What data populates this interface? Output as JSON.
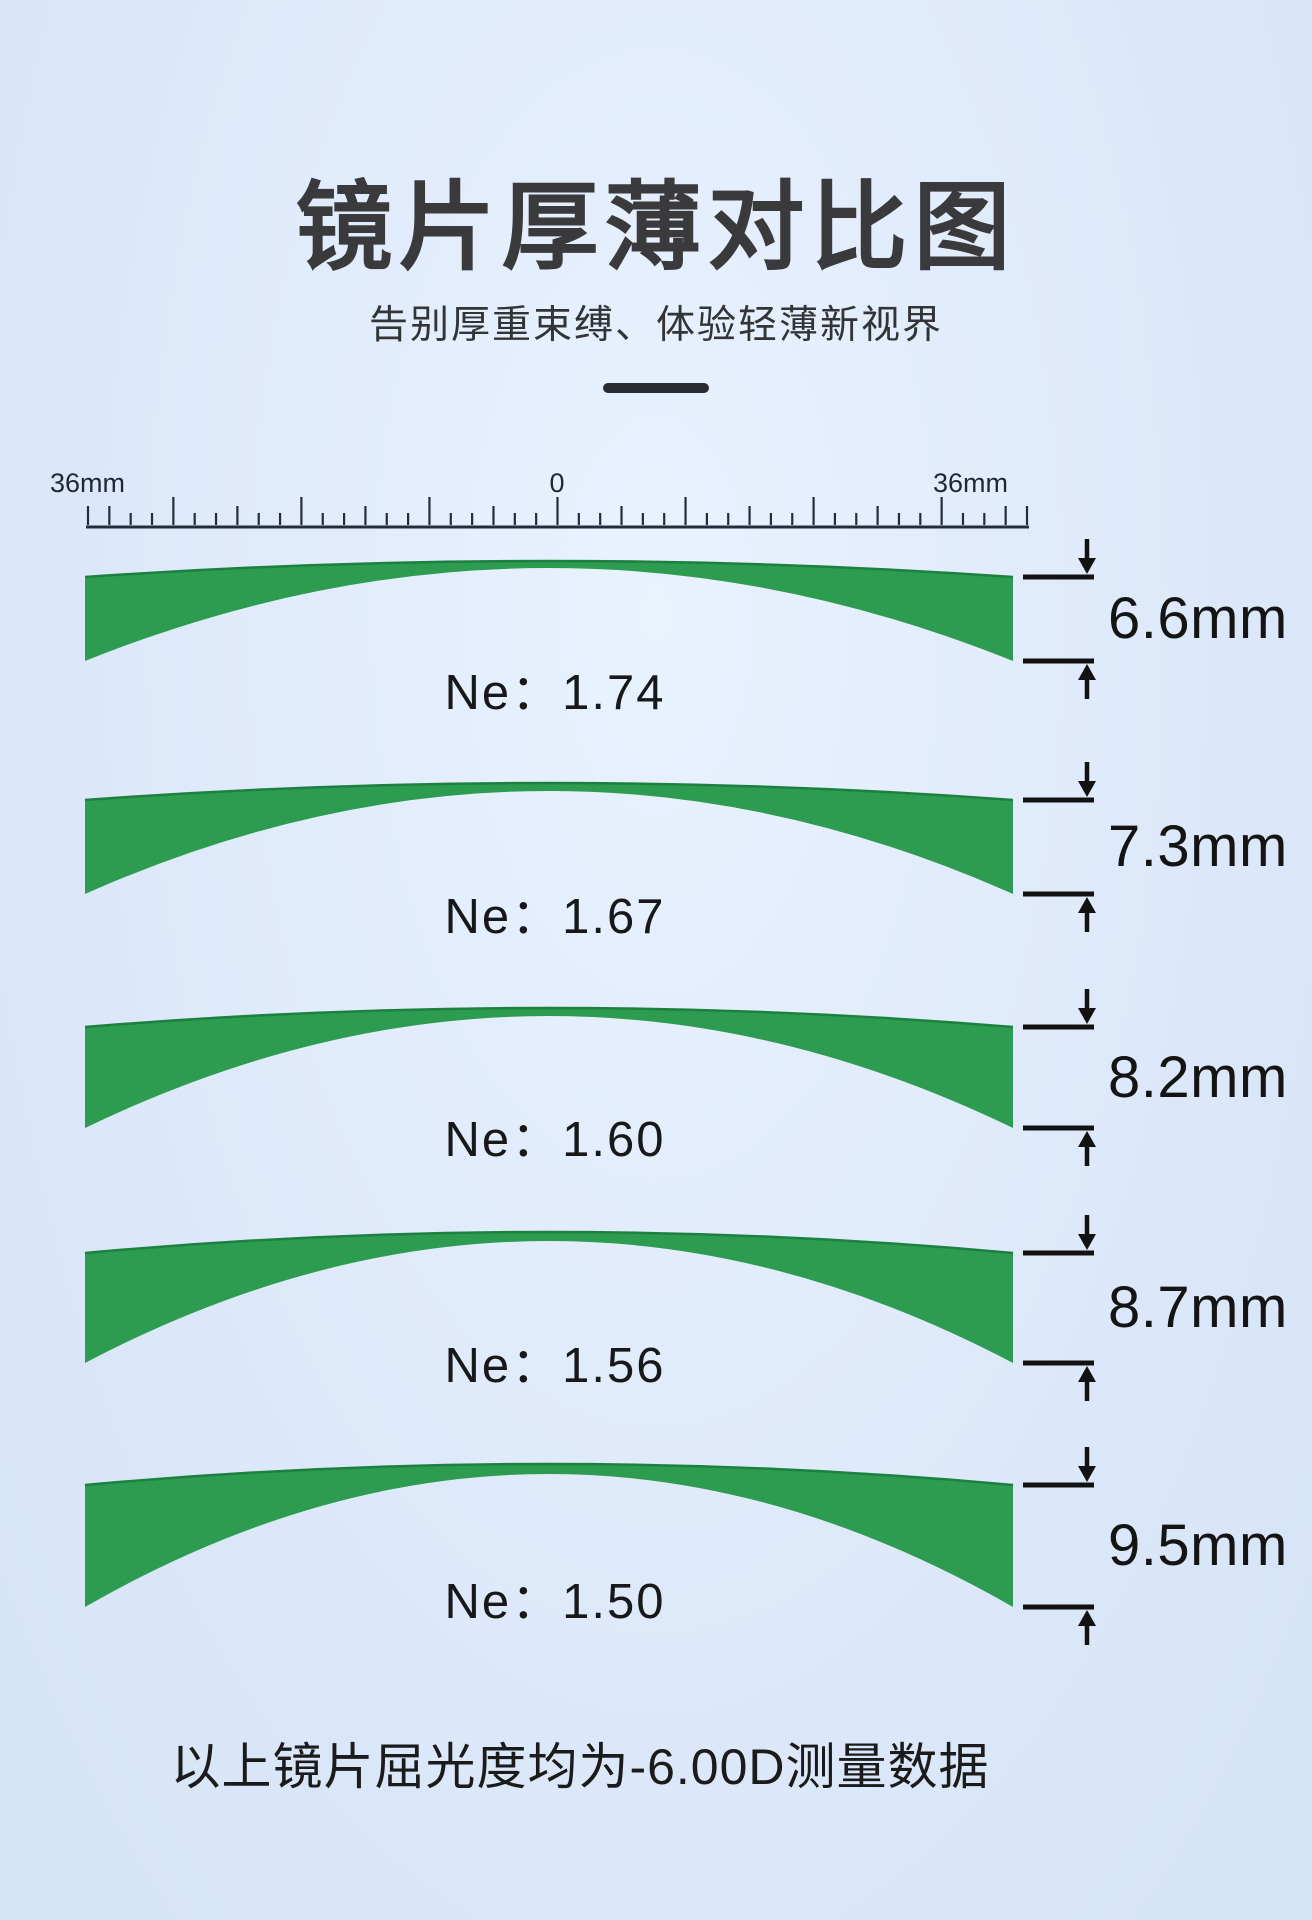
{
  "header": {
    "title": "镜片厚薄对比图",
    "subtitle": "告别厚重束缚、体验轻薄新视界"
  },
  "ruler": {
    "left_label": "36mm",
    "center_label": "0",
    "right_label": "36mm"
  },
  "lenses": [
    {
      "material_label": "Ne：1.74",
      "refractive_index": "1.74",
      "thickness_label": "6.6mm",
      "edge_thickness_mm": 6.6
    },
    {
      "material_label": "Ne：1.67",
      "refractive_index": "1.67",
      "thickness_label": "7.3mm",
      "edge_thickness_mm": 7.3
    },
    {
      "material_label": "Ne：1.60",
      "refractive_index": "1.60",
      "thickness_label": "8.2mm",
      "edge_thickness_mm": 8.2
    },
    {
      "material_label": "Ne：1.56",
      "refractive_index": "1.56",
      "thickness_label": "8.7mm",
      "edge_thickness_mm": 8.7
    },
    {
      "material_label": "Ne：1.50",
      "refractive_index": "1.50",
      "thickness_label": "9.5mm",
      "edge_thickness_mm": 9.5
    }
  ],
  "footnote": "以上镜片屈光度均为-6.00D测量数据",
  "colors": {
    "background": "#dde9fb",
    "lens_fill": "#2d9b50",
    "lens_top_edge": "#1c813f",
    "dimension_ink": "#121212",
    "ruler_ink": "#232c3a",
    "title_ink": "#3a3a3c"
  },
  "chart_data": {
    "type": "table",
    "title": "镜片厚薄对比图",
    "subtitle": "告别厚重束缚、体验轻薄新视界",
    "columns": [
      "Ne",
      "edge_thickness"
    ],
    "rows": [
      [
        "1.74",
        "6.6mm"
      ],
      [
        "1.67",
        "7.3mm"
      ],
      [
        "1.60",
        "8.2mm"
      ],
      [
        "1.56",
        "8.7mm"
      ],
      [
        "1.50",
        "9.5mm"
      ]
    ],
    "ruler_range_mm": [
      -36,
      36
    ],
    "note": "以上镜片屈光度均为-6.00D测量数据"
  }
}
